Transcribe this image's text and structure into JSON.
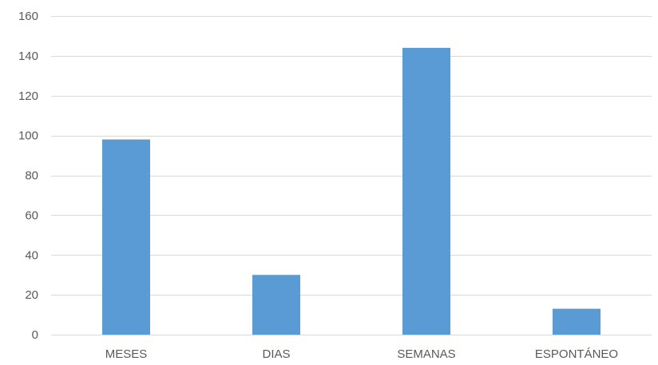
{
  "chart_data": {
    "type": "bar",
    "categories": [
      "MESES",
      "DIAS",
      "SEMANAS",
      "ESPONTÁNEO"
    ],
    "values": [
      98,
      30,
      144,
      13
    ],
    "ylim": [
      0,
      160
    ],
    "yticks": [
      0,
      20,
      40,
      60,
      80,
      100,
      120,
      140,
      160
    ],
    "grid": true,
    "bar_color": "#5b9bd5",
    "grid_color": "#d9d9d9",
    "text_color": "#595959"
  }
}
